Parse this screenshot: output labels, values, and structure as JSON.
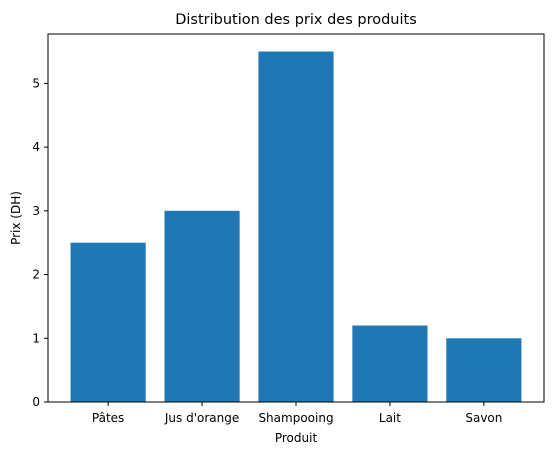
{
  "chart_data": {
    "type": "bar",
    "title": "Distribution des prix des produits",
    "xlabel": "Produit",
    "ylabel": "Prix (DH)",
    "categories": [
      "Pâtes",
      "Jus d'orange",
      "Shampooing",
      "Lait",
      "Savon"
    ],
    "values": [
      2.5,
      3.0,
      5.5,
      1.2,
      1.0
    ],
    "ylim": [
      0,
      5.775
    ],
    "yticks": [
      0,
      1,
      2,
      3,
      4,
      5
    ],
    "grid": false,
    "bar_color": "#1f77b4"
  }
}
